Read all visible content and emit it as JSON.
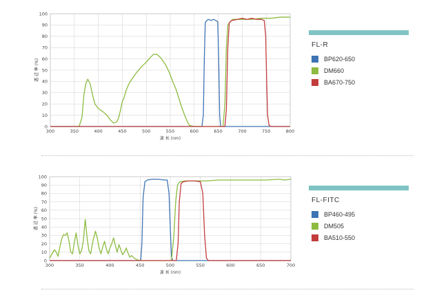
{
  "colors": {
    "blue": "#3d73b4",
    "green": "#8cbb3f",
    "red": "#c23c3c",
    "accent": "#7fc4c2",
    "grid": "#cfcfcf"
  },
  "charts": [
    {
      "legend_title": "FL-R",
      "xlabel": "波 长 (nm)",
      "ylabel": "透 过 率 (%)",
      "x_ticks": [
        300,
        350,
        400,
        450,
        500,
        550,
        600,
        650,
        700,
        750,
        800
      ],
      "y_ticks": [
        0,
        10,
        20,
        30,
        40,
        50,
        60,
        70,
        80,
        90,
        100
      ]
    },
    {
      "legend_title": "FL-FITC",
      "xlabel": "波 长 (nm)",
      "ylabel": "透 过 率 (%)",
      "x_ticks": [
        300,
        350,
        400,
        450,
        500,
        550,
        600,
        650,
        700
      ],
      "y_ticks": [
        0,
        10,
        20,
        30,
        40,
        50,
        60,
        70,
        80,
        90,
        100
      ]
    }
  ],
  "chart_data": [
    {
      "type": "line",
      "title": "",
      "xlabel": "波 长 (nm)",
      "ylabel": "透 过 率 (%)",
      "xlim": [
        300,
        800
      ],
      "ylim": [
        0,
        100
      ],
      "grid": true,
      "legend_position": "right",
      "series": [
        {
          "name": "BP620-650",
          "color": "blue",
          "points": [
            [
              300,
              0
            ],
            [
              616,
              0
            ],
            [
              619,
              10
            ],
            [
              621,
              60
            ],
            [
              623,
              92
            ],
            [
              626,
              94
            ],
            [
              630,
              95
            ],
            [
              635,
              94
            ],
            [
              640,
              95
            ],
            [
              645,
              94
            ],
            [
              649,
              93
            ],
            [
              651,
              60
            ],
            [
              653,
              10
            ],
            [
              655,
              0
            ],
            [
              800,
              0
            ]
          ]
        },
        {
          "name": "DM660",
          "color": "green",
          "points": [
            [
              300,
              0
            ],
            [
              360,
              0
            ],
            [
              366,
              8
            ],
            [
              370,
              28
            ],
            [
              374,
              38
            ],
            [
              378,
              42
            ],
            [
              383,
              38
            ],
            [
              388,
              28
            ],
            [
              393,
              20
            ],
            [
              400,
              16
            ],
            [
              410,
              13
            ],
            [
              418,
              10
            ],
            [
              425,
              6
            ],
            [
              432,
              3
            ],
            [
              438,
              4
            ],
            [
              442,
              7
            ],
            [
              446,
              14
            ],
            [
              450,
              22
            ],
            [
              454,
              26
            ],
            [
              458,
              32
            ],
            [
              464,
              38
            ],
            [
              470,
              42
            ],
            [
              480,
              48
            ],
            [
              490,
              53
            ],
            [
              500,
              57
            ],
            [
              508,
              61
            ],
            [
              515,
              64
            ],
            [
              522,
              64
            ],
            [
              530,
              61
            ],
            [
              540,
              55
            ],
            [
              548,
              48
            ],
            [
              555,
              40
            ],
            [
              562,
              33
            ],
            [
              568,
              25
            ],
            [
              574,
              17
            ],
            [
              580,
              10
            ],
            [
              586,
              4
            ],
            [
              590,
              1
            ],
            [
              600,
              0
            ],
            [
              660,
              0
            ],
            [
              664,
              20
            ],
            [
              667,
              70
            ],
            [
              670,
              90
            ],
            [
              675,
              93
            ],
            [
              680,
              95
            ],
            [
              690,
              95
            ],
            [
              700,
              95
            ],
            [
              720,
              95
            ],
            [
              740,
              96
            ],
            [
              760,
              96
            ],
            [
              780,
              97
            ],
            [
              800,
              97
            ]
          ]
        },
        {
          "name": "BA670-750",
          "color": "red",
          "points": [
            [
              300,
              0
            ],
            [
              664,
              0
            ],
            [
              667,
              15
            ],
            [
              670,
              70
            ],
            [
              673,
              92
            ],
            [
              678,
              94
            ],
            [
              690,
              95
            ],
            [
              700,
              96
            ],
            [
              710,
              95
            ],
            [
              720,
              96
            ],
            [
              730,
              95
            ],
            [
              740,
              95
            ],
            [
              746,
              94
            ],
            [
              749,
              80
            ],
            [
              751,
              40
            ],
            [
              753,
              10
            ],
            [
              756,
              1
            ],
            [
              760,
              0
            ],
            [
              800,
              0
            ]
          ]
        }
      ]
    },
    {
      "type": "line",
      "title": "",
      "xlabel": "波 长 (nm)",
      "ylabel": "透 过 率 (%)",
      "xlim": [
        300,
        700
      ],
      "ylim": [
        0,
        100
      ],
      "grid": true,
      "legend_position": "right",
      "series": [
        {
          "name": "BP460-495",
          "color": "blue",
          "points": [
            [
              300,
              0
            ],
            [
              451,
              0
            ],
            [
              453,
              20
            ],
            [
              455,
              75
            ],
            [
              458,
              94
            ],
            [
              462,
              96
            ],
            [
              470,
              97
            ],
            [
              480,
              97
            ],
            [
              490,
              96
            ],
            [
              495,
              96
            ],
            [
              498,
              80
            ],
            [
              500,
              40
            ],
            [
              502,
              5
            ],
            [
              504,
              0
            ],
            [
              700,
              0
            ]
          ]
        },
        {
          "name": "DM505",
          "color": "green",
          "points": [
            [
              300,
              3
            ],
            [
              304,
              8
            ],
            [
              308,
              13
            ],
            [
              311,
              10
            ],
            [
              314,
              5
            ],
            [
              317,
              16
            ],
            [
              320,
              26
            ],
            [
              323,
              31
            ],
            [
              326,
              30
            ],
            [
              329,
              33
            ],
            [
              332,
              24
            ],
            [
              335,
              10
            ],
            [
              338,
              8
            ],
            [
              341,
              22
            ],
            [
              344,
              33
            ],
            [
              347,
              18
            ],
            [
              350,
              8
            ],
            [
              353,
              12
            ],
            [
              356,
              24
            ],
            [
              359,
              49
            ],
            [
              362,
              28
            ],
            [
              365,
              12
            ],
            [
              368,
              8
            ],
            [
              372,
              24
            ],
            [
              376,
              35
            ],
            [
              379,
              27
            ],
            [
              382,
              15
            ],
            [
              385,
              8
            ],
            [
              388,
              16
            ],
            [
              391,
              23
            ],
            [
              394,
              14
            ],
            [
              397,
              8
            ],
            [
              400,
              15
            ],
            [
              403,
              20
            ],
            [
              406,
              27
            ],
            [
              409,
              18
            ],
            [
              412,
              10
            ],
            [
              415,
              19
            ],
            [
              418,
              13
            ],
            [
              421,
              7
            ],
            [
              424,
              10
            ],
            [
              427,
              15
            ],
            [
              430,
              9
            ],
            [
              433,
              4
            ],
            [
              436,
              6
            ],
            [
              440,
              3
            ],
            [
              445,
              1
            ],
            [
              450,
              0
            ],
            [
              502,
              0
            ],
            [
              506,
              30
            ],
            [
              509,
              70
            ],
            [
              512,
              90
            ],
            [
              516,
              94
            ],
            [
              525,
              95
            ],
            [
              540,
              95
            ],
            [
              560,
              95
            ],
            [
              580,
              96
            ],
            [
              600,
              96
            ],
            [
              620,
              96
            ],
            [
              640,
              96
            ],
            [
              660,
              96
            ],
            [
              680,
              97
            ],
            [
              690,
              96
            ],
            [
              700,
              97
            ]
          ]
        },
        {
          "name": "BA510-550",
          "color": "red",
          "points": [
            [
              300,
              0
            ],
            [
              510,
              0
            ],
            [
              513,
              20
            ],
            [
              515,
              70
            ],
            [
              518,
              92
            ],
            [
              522,
              94
            ],
            [
              530,
              95
            ],
            [
              540,
              95
            ],
            [
              550,
              94
            ],
            [
              554,
              80
            ],
            [
              557,
              30
            ],
            [
              560,
              3
            ],
            [
              563,
              0
            ],
            [
              700,
              0
            ]
          ]
        }
      ]
    }
  ]
}
